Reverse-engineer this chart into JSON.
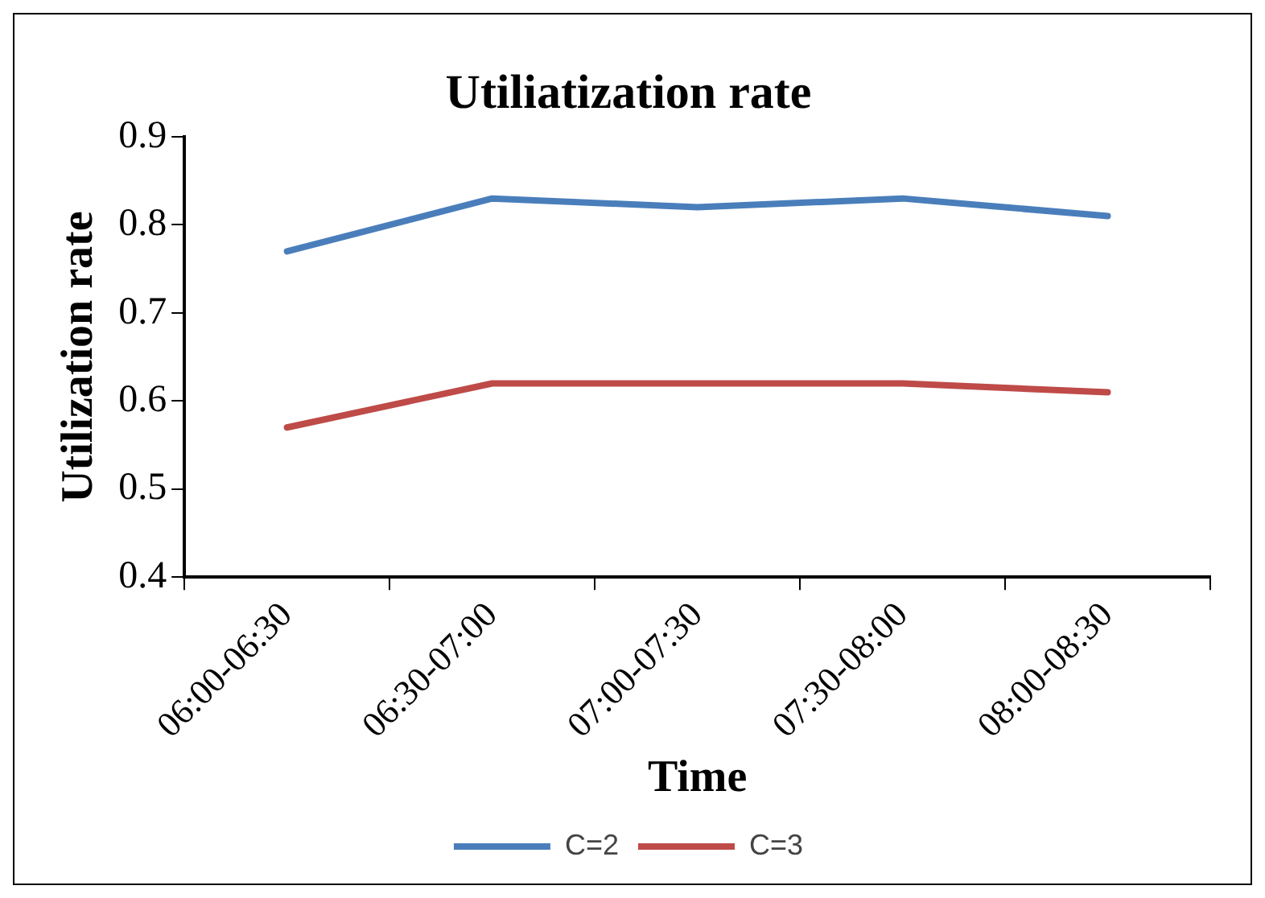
{
  "chart_data": {
    "type": "line",
    "title": "Utiliatization rate",
    "xlabel": "Time",
    "ylabel": "Utilization rate",
    "categories": [
      "06:00-06:30",
      "06:30-07:00",
      "07:00-07:30",
      "07:30-08:00",
      "08:00-08:30"
    ],
    "series": [
      {
        "name": "C=2",
        "color": "#4a7ebb",
        "values": [
          0.77,
          0.83,
          0.82,
          0.83,
          0.81
        ]
      },
      {
        "name": "C=3",
        "color": "#be4b48",
        "values": [
          0.57,
          0.62,
          0.62,
          0.62,
          0.61
        ]
      }
    ],
    "ylim": [
      0.4,
      0.9
    ],
    "yticks": [
      0.4,
      0.5,
      0.6,
      0.7,
      0.8,
      0.9
    ],
    "grid": false,
    "legend": "bottom",
    "marker": "none",
    "line_style": "solid"
  }
}
